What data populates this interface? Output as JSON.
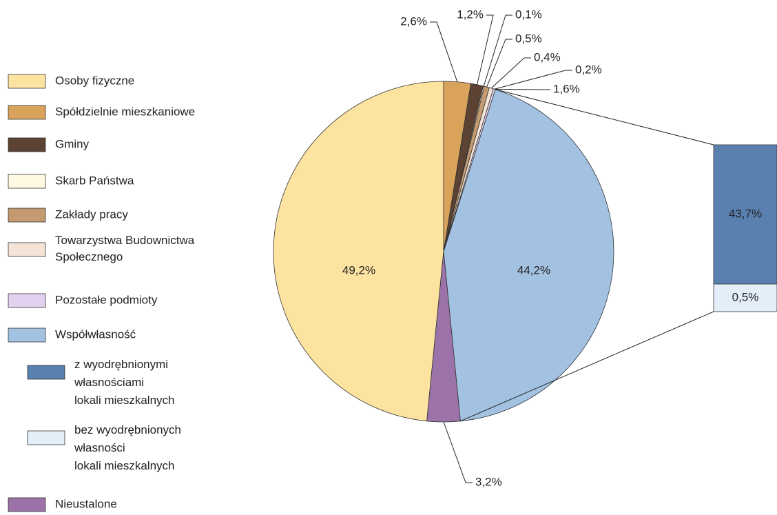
{
  "chart_data": {
    "type": "pie",
    "categories": [
      "Osoby fizyczne",
      "Spółdzielnie mieszkaniowe",
      "Gminy",
      "Skarb Państwa",
      "Zakłady pracy",
      "Towarzystwa Budownictwa\nSpołecznego",
      "Pozostałe podmioty",
      "Współwłasność",
      "Nieustalone"
    ],
    "values": [
      49.2,
      2.6,
      1.2,
      0.1,
      0.5,
      0.4,
      0.2,
      44.2,
      3.2
    ],
    "value_labels": [
      "49,2%",
      "2,6%",
      "1,2%",
      "0,1%",
      "0,5%",
      "0,4%",
      "0,2%",
      "44,2%",
      "3,2%"
    ],
    "colors": [
      "#fde3a0",
      "#d9a35c",
      "#5b4232",
      "#fff9e3",
      "#c49a70",
      "#f4e4d8",
      "#e2d2ef",
      "#a3c2e2",
      "#9c73a8"
    ],
    "annotations": [
      "1,6%"
    ],
    "breakdown": {
      "breakdown_of": "Współwłasność",
      "categories": [
        "z wyodrębnionymi\nwłasnościami\nlokali mieszkalnych",
        "bez wyodrębnionych\nwłasności\nlokali mieszkalnych"
      ],
      "values": [
        43.7,
        0.5
      ],
      "value_labels": [
        "43,7%",
        "0,5%"
      ],
      "colors": [
        "#5a80b0",
        "#e3eef9"
      ]
    }
  }
}
